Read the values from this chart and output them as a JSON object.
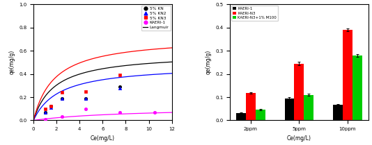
{
  "left_chart": {
    "series": [
      {
        "label": "5% KN",
        "color": "black",
        "marker": "o",
        "scatter_x": [
          1.0,
          1.5,
          2.5,
          4.5,
          7.5
        ],
        "scatter_y": [
          0.07,
          0.12,
          0.19,
          0.19,
          0.29
        ],
        "langmuir_qmax": 0.58,
        "langmuir_KL": 0.55
      },
      {
        "label": "5% KN2",
        "color": "blue",
        "marker": "^",
        "scatter_x": [
          1.0,
          1.5,
          2.5,
          4.5,
          7.5
        ],
        "scatter_y": [
          0.07,
          0.11,
          0.19,
          0.19,
          0.28
        ],
        "langmuir_qmax": 0.48,
        "langmuir_KL": 0.45
      },
      {
        "label": "5% KN3",
        "color": "red",
        "marker": "s",
        "scatter_x": [
          1.0,
          1.5,
          2.5,
          4.5,
          7.5
        ],
        "scatter_y": [
          0.1,
          0.12,
          0.24,
          0.25,
          0.39
        ],
        "langmuir_qmax": 0.72,
        "langmuir_KL": 0.55
      },
      {
        "label": "KAERI-1",
        "color": "magenta",
        "marker": "o",
        "scatter_x": [
          1.0,
          2.5,
          4.5,
          7.5,
          10.5
        ],
        "scatter_y": [
          0.01,
          0.03,
          0.1,
          0.07,
          0.07
        ],
        "langmuir_qmax": 0.115,
        "langmuir_KL": 0.12
      }
    ],
    "xlim": [
      0,
      12
    ],
    "ylim": [
      0,
      1.0
    ],
    "xlabel": "Ce(mg/L)",
    "ylabel": "qe(mg/g)",
    "xticks": [
      0,
      2,
      4,
      6,
      8,
      10,
      12
    ],
    "yticks": [
      0.0,
      0.2,
      0.4,
      0.6,
      0.8,
      1.0
    ]
  },
  "right_chart": {
    "categories": [
      "2ppm",
      "5ppm",
      "10ppm"
    ],
    "series": [
      {
        "label": "KAERI-1",
        "color": "black",
        "values": [
          0.03,
          0.095,
          0.068
        ],
        "errors": [
          0.003,
          0.004,
          0.003
        ]
      },
      {
        "label": "KAERI-N3",
        "color": "red",
        "values": [
          0.118,
          0.245,
          0.39
        ],
        "errors": [
          0.004,
          0.008,
          0.005
        ]
      },
      {
        "label": "KAERI-N3+1% M100",
        "color": "#00cc00",
        "values": [
          0.045,
          0.11,
          0.28
        ],
        "errors": [
          0.003,
          0.005,
          0.006
        ]
      }
    ],
    "ylim": [
      0,
      0.5
    ],
    "xlabel": "Ce(mg/L)",
    "ylabel": "qe(mg/g)",
    "yticks": [
      0.0,
      0.1,
      0.2,
      0.3,
      0.4,
      0.5
    ]
  }
}
